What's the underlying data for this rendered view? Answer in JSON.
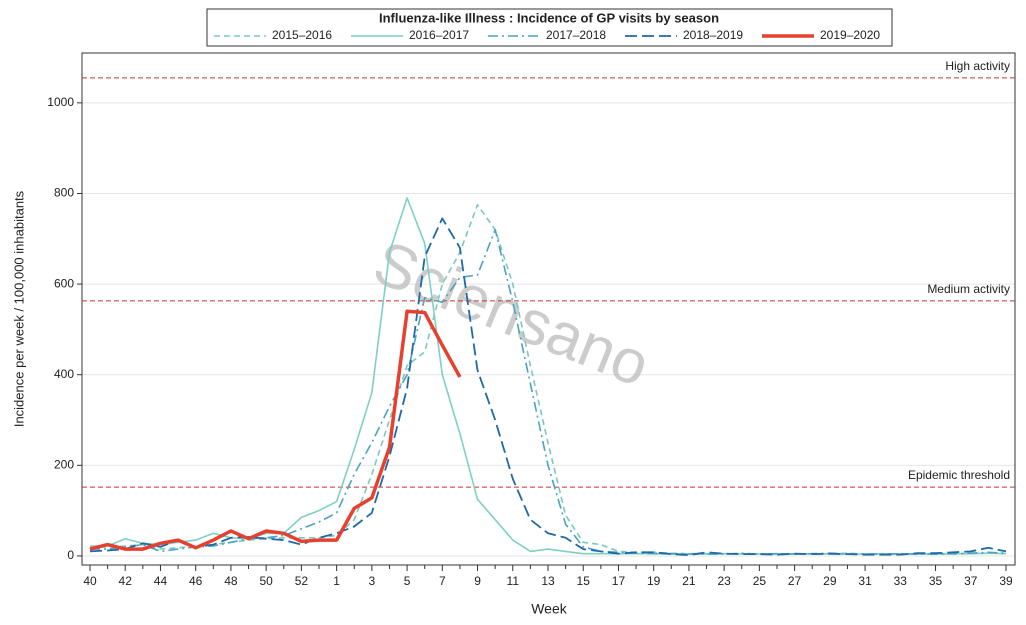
{
  "chart_data": {
    "type": "line",
    "title": "Influenza-like Illness : Incidence of GP visits by season",
    "x_label": "Week",
    "y_label": "Incidence per week / 100,000 inhabitants",
    "watermark": "Sciensano",
    "categories": [
      "40",
      null,
      "42",
      null,
      "44",
      null,
      "46",
      null,
      "48",
      null,
      "50",
      null,
      "52",
      null,
      "1",
      null,
      "3",
      null,
      "5",
      null,
      "7",
      null,
      "9",
      null,
      "11",
      null,
      "13",
      null,
      "15",
      null,
      "17",
      null,
      "19",
      null,
      "21",
      null,
      "23",
      null,
      "25",
      null,
      "27",
      null,
      "29",
      null,
      "31",
      null,
      "33",
      null,
      "35",
      null,
      "37",
      null,
      "39"
    ],
    "ylim": [
      -20,
      1110
    ],
    "yticks": [
      0,
      200,
      400,
      600,
      800,
      1000
    ],
    "grid": true,
    "thresholds": [
      {
        "label": "High activity",
        "value": 1055
      },
      {
        "label": "Medium activity",
        "value": 563
      },
      {
        "label": "Epidemic threshold",
        "value": 152
      }
    ],
    "series": [
      {
        "name": "2015–2016",
        "color": "#7cc8bf",
        "dash": "6,4",
        "width": 1.6,
        "values": [
          20,
          20,
          22,
          25,
          15,
          18,
          22,
          25,
          30,
          35,
          38,
          40,
          40,
          40,
          45,
          80,
          180,
          300,
          420,
          450,
          600,
          670,
          775,
          720,
          600,
          420,
          250,
          90,
          30,
          25,
          10,
          8,
          8,
          6,
          5,
          5,
          5,
          4,
          4,
          5,
          4,
          4,
          5,
          6,
          4,
          4,
          4,
          5,
          4,
          4,
          5,
          6,
          5
        ]
      },
      {
        "name": "2016–2017",
        "color": "#7fd0c3",
        "dash": "",
        "width": 1.6,
        "values": [
          22,
          22,
          38,
          28,
          25,
          30,
          35,
          50,
          40,
          38,
          50,
          50,
          85,
          100,
          120,
          235,
          360,
          670,
          790,
          690,
          400,
          270,
          125,
          80,
          35,
          10,
          15,
          10,
          5,
          5,
          5,
          5,
          5,
          4,
          4,
          4,
          5,
          4,
          4,
          4,
          4,
          5,
          4,
          4,
          4,
          5,
          4,
          4,
          4,
          5,
          5,
          6,
          5
        ]
      },
      {
        "name": "2017–2018",
        "color": "#4aa2c4",
        "dash": "10,4,2,4",
        "width": 1.6,
        "values": [
          15,
          15,
          20,
          25,
          10,
          15,
          20,
          22,
          30,
          38,
          40,
          45,
          60,
          75,
          95,
          180,
          250,
          330,
          400,
          570,
          560,
          615,
          620,
          720,
          560,
          380,
          200,
          70,
          20,
          10,
          8,
          6,
          5,
          5,
          4,
          4,
          4,
          6,
          4,
          5,
          4,
          5,
          6,
          4,
          4,
          4,
          5,
          4,
          4,
          5,
          6,
          8,
          6
        ]
      },
      {
        "name": "2018–2019",
        "color": "#1f69a6",
        "dash": "12,5",
        "width": 1.8,
        "values": [
          10,
          12,
          15,
          28,
          20,
          35,
          20,
          25,
          40,
          42,
          38,
          35,
          25,
          40,
          50,
          65,
          95,
          220,
          370,
          660,
          745,
          680,
          410,
          300,
          170,
          80,
          50,
          40,
          15,
          10,
          5,
          8,
          8,
          4,
          2,
          8,
          5,
          4,
          4,
          3,
          5,
          4,
          5,
          4,
          3,
          3,
          3,
          6,
          6,
          8,
          10,
          18,
          10
        ]
      },
      {
        "name": "2019–2020",
        "color": "#e8402f",
        "dash": "",
        "width": 3.5,
        "values": [
          15,
          25,
          15,
          15,
          28,
          35,
          18,
          35,
          55,
          38,
          55,
          50,
          32,
          35,
          35,
          105,
          128,
          240,
          540,
          537,
          465,
          395,
          null,
          null,
          null,
          null,
          null,
          null,
          null,
          null,
          null,
          null,
          null,
          null,
          null,
          null,
          null,
          null,
          null,
          null,
          null,
          null,
          null,
          null,
          null,
          null,
          null,
          null,
          null,
          null,
          null,
          null,
          null
        ]
      }
    ]
  }
}
